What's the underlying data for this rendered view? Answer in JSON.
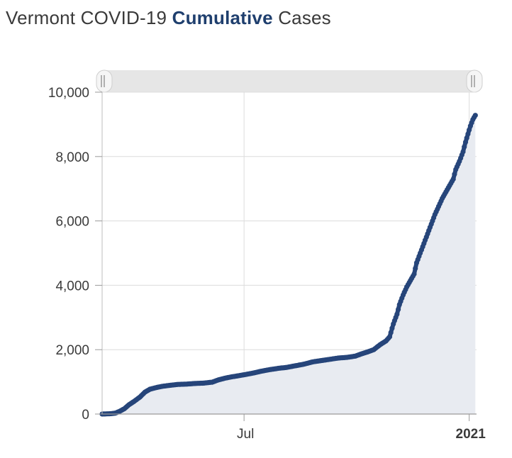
{
  "header": {
    "title_prefix": "Vermont COVID-19 ",
    "title_accent": "Cumulative",
    "title_suffix": " Cases"
  },
  "colors": {
    "series": "#26457a",
    "area_fill": "#e8ebf1",
    "grid": "#dcdcdc",
    "navigator": "#e6e6e6",
    "title_accent": "#1f3f6e"
  },
  "chart_data": {
    "type": "area",
    "title": "Vermont COVID-19 Cumulative Cases",
    "xlabel": "",
    "ylabel": "",
    "x_axis_type": "datetime",
    "xlim": [
      "2020-03-07",
      "2021-01-07"
    ],
    "ylim": [
      0,
      10000
    ],
    "y_ticks": [
      0,
      2000,
      4000,
      6000,
      8000,
      10000
    ],
    "y_tick_labels": [
      "0",
      "2,000",
      "4,000",
      "6,000",
      "8,000",
      "10,000"
    ],
    "x_ticks": [
      "2020-07-01",
      "2021-01-01"
    ],
    "x_tick_labels": [
      "Jul",
      "2021"
    ],
    "x_tick_bold": [
      false,
      true
    ],
    "grid": true,
    "legend": "none",
    "markers": true,
    "series": [
      {
        "points": [
          [
            "2020-03-07",
            0
          ],
          [
            "2020-03-14",
            10
          ],
          [
            "2020-03-18",
            30
          ],
          [
            "2020-03-21",
            80
          ],
          [
            "2020-03-25",
            160
          ],
          [
            "2020-03-29",
            290
          ],
          [
            "2020-04-02",
            390
          ],
          [
            "2020-04-07",
            530
          ],
          [
            "2020-04-11",
            680
          ],
          [
            "2020-04-15",
            770
          ],
          [
            "2020-04-20",
            820
          ],
          [
            "2020-04-25",
            860
          ],
          [
            "2020-05-01",
            890
          ],
          [
            "2020-05-08",
            920
          ],
          [
            "2020-05-15",
            930
          ],
          [
            "2020-05-22",
            950
          ],
          [
            "2020-05-29",
            960
          ],
          [
            "2020-06-05",
            990
          ],
          [
            "2020-06-10",
            1060
          ],
          [
            "2020-06-15",
            1110
          ],
          [
            "2020-06-20",
            1150
          ],
          [
            "2020-06-25",
            1180
          ],
          [
            "2020-07-01",
            1220
          ],
          [
            "2020-07-08",
            1270
          ],
          [
            "2020-07-15",
            1330
          ],
          [
            "2020-07-22",
            1380
          ],
          [
            "2020-07-29",
            1420
          ],
          [
            "2020-08-05",
            1450
          ],
          [
            "2020-08-12",
            1500
          ],
          [
            "2020-08-19",
            1550
          ],
          [
            "2020-08-26",
            1620
          ],
          [
            "2020-09-02",
            1660
          ],
          [
            "2020-09-09",
            1700
          ],
          [
            "2020-09-16",
            1740
          ],
          [
            "2020-09-23",
            1760
          ],
          [
            "2020-09-30",
            1800
          ],
          [
            "2020-10-05",
            1870
          ],
          [
            "2020-10-10",
            1930
          ],
          [
            "2020-10-15",
            2000
          ],
          [
            "2020-10-20",
            2150
          ],
          [
            "2020-10-25",
            2270
          ],
          [
            "2020-10-28",
            2400
          ],
          [
            "2020-10-31",
            2800
          ],
          [
            "2020-11-03",
            3100
          ],
          [
            "2020-11-05",
            3400
          ],
          [
            "2020-11-08",
            3700
          ],
          [
            "2020-11-11",
            3950
          ],
          [
            "2020-11-14",
            4150
          ],
          [
            "2020-11-17",
            4350
          ],
          [
            "2020-11-19",
            4700
          ],
          [
            "2020-11-22",
            5000
          ],
          [
            "2020-11-25",
            5300
          ],
          [
            "2020-11-28",
            5600
          ],
          [
            "2020-12-01",
            5900
          ],
          [
            "2020-12-04",
            6200
          ],
          [
            "2020-12-07",
            6450
          ],
          [
            "2020-12-10",
            6700
          ],
          [
            "2020-12-13",
            6900
          ],
          [
            "2020-12-16",
            7100
          ],
          [
            "2020-12-19",
            7300
          ],
          [
            "2020-12-21",
            7600
          ],
          [
            "2020-12-24",
            7850
          ],
          [
            "2020-12-27",
            8150
          ],
          [
            "2020-12-29",
            8450
          ],
          [
            "2020-12-31",
            8700
          ],
          [
            "2021-01-02",
            8950
          ],
          [
            "2021-01-04",
            9150
          ],
          [
            "2021-01-06",
            9280
          ]
        ]
      }
    ]
  }
}
